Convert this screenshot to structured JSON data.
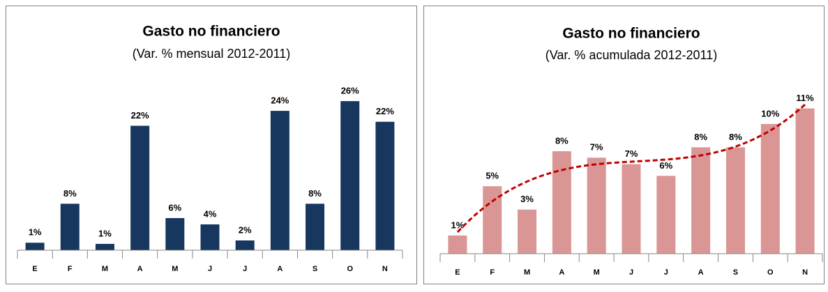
{
  "chart_data": [
    {
      "type": "bar",
      "title": "Gasto no financiero",
      "subtitle": "(Var. % mensual 2012-2011)",
      "categories": [
        "E",
        "F",
        "M",
        "A",
        "M",
        "J",
        "J",
        "A",
        "S",
        "O",
        "N"
      ],
      "values": [
        1.3,
        8.1,
        1.1,
        21.7,
        5.6,
        4.5,
        1.7,
        24.3,
        8.1,
        26.0,
        22.4
      ],
      "value_labels": [
        "1%",
        "8%",
        "1%",
        "22%",
        "6%",
        "4%",
        "2%",
        "24%",
        "8%",
        "26%",
        "22%"
      ],
      "color": "#17375e",
      "ylim": [
        0,
        26.5
      ]
    },
    {
      "type": "bar",
      "title": "Gasto no financiero",
      "subtitle": "(Var. % acumulada 2012-2011)",
      "categories": [
        "E",
        "F",
        "M",
        "A",
        "M",
        "J",
        "J",
        "A",
        "S",
        "O",
        "N"
      ],
      "values": [
        1.4,
        5.2,
        3.4,
        7.9,
        7.4,
        6.9,
        6.0,
        8.2,
        8.2,
        10.0,
        11.2
      ],
      "value_labels": [
        "1%",
        "5%",
        "3%",
        "8%",
        "7%",
        "7%",
        "6%",
        "8%",
        "8%",
        "10%",
        "11%"
      ],
      "color": "#d99694",
      "ylim": [
        0,
        11.5
      ],
      "trendline": {
        "type": "polynomial",
        "order": 3,
        "color": "#c00000"
      }
    }
  ]
}
